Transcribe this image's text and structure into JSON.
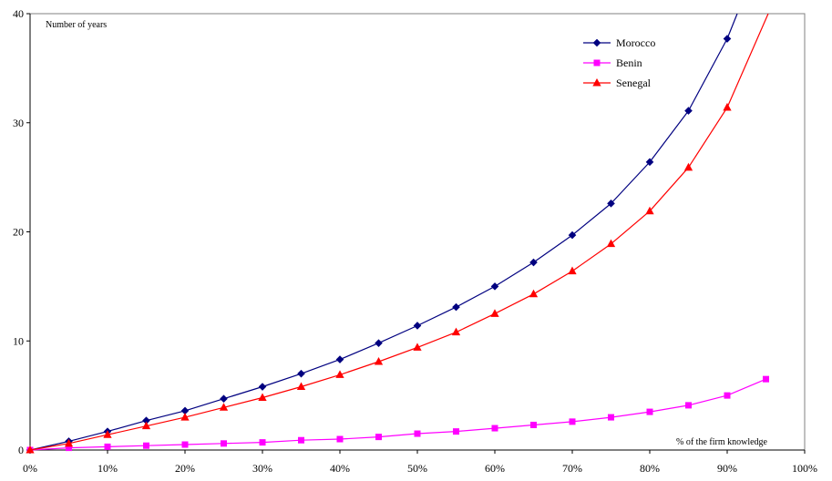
{
  "chart_data": {
    "type": "line",
    "ylabel": "Number of years",
    "xlabel": "% of the firm knowledge",
    "xlim": [
      0,
      100
    ],
    "ylim": [
      0,
      40
    ],
    "x_ticks": [
      "0%",
      "10%",
      "20%",
      "30%",
      "40%",
      "50%",
      "60%",
      "70%",
      "80%",
      "90%",
      "100%"
    ],
    "y_ticks": [
      "0",
      "10",
      "20",
      "30",
      "40"
    ],
    "grid": false,
    "legend_position": "top-right",
    "x": [
      0,
      5,
      10,
      15,
      20,
      25,
      30,
      35,
      40,
      45,
      50,
      55,
      60,
      65,
      70,
      75,
      80,
      85,
      90,
      95
    ],
    "series": [
      {
        "name": "Morocco",
        "color": "#000080",
        "marker": "diamond",
        "values": [
          0,
          0.8,
          1.7,
          2.7,
          3.6,
          4.7,
          5.8,
          7.0,
          8.3,
          9.8,
          11.4,
          13.1,
          15.0,
          17.2,
          19.7,
          22.6,
          26.4,
          31.1,
          37.7,
          null
        ],
        "tail": [
          [
            91.3,
            40
          ]
        ]
      },
      {
        "name": "Benin",
        "color": "#ff00ff",
        "marker": "square",
        "values": [
          0,
          0.2,
          0.3,
          0.4,
          0.5,
          0.6,
          0.7,
          0.9,
          1.0,
          1.2,
          1.5,
          1.7,
          2.0,
          2.3,
          2.6,
          3.0,
          3.5,
          4.1,
          5.0,
          6.5
        ],
        "tail": []
      },
      {
        "name": "Senegal",
        "color": "#ff0000",
        "marker": "triangle",
        "values": [
          0,
          0.6,
          1.4,
          2.2,
          3.0,
          3.9,
          4.8,
          5.8,
          6.9,
          8.1,
          9.4,
          10.8,
          12.5,
          14.3,
          16.4,
          18.9,
          21.9,
          25.9,
          31.4,
          null
        ],
        "tail": [
          [
            95.3,
            40
          ]
        ]
      }
    ]
  }
}
